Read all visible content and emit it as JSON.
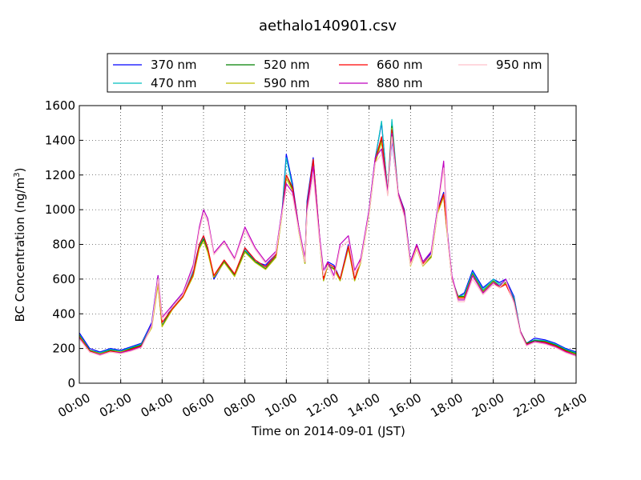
{
  "chart_data": {
    "type": "line",
    "title": "aethalo140901.csv",
    "xlabel": "Time on 2014-09-01 (JST)",
    "ylabel": "BC Concentration (ng/m",
    "ylabel_sup": "3",
    "ylabel_end": ")",
    "xlim": [
      0,
      24
    ],
    "ylim": [
      0,
      1600
    ],
    "grid": true,
    "legend_position": "top",
    "x_ticks": [
      0,
      2,
      4,
      6,
      8,
      10,
      12,
      14,
      16,
      18,
      20,
      22,
      24
    ],
    "x_tick_labels": [
      "00:00",
      "02:00",
      "04:00",
      "06:00",
      "08:00",
      "10:00",
      "12:00",
      "14:00",
      "16:00",
      "18:00",
      "20:00",
      "22:00",
      "24:00"
    ],
    "y_ticks": [
      0,
      200,
      400,
      600,
      800,
      1000,
      1200,
      1400,
      1600
    ],
    "y_tick_labels": [
      "0",
      "200",
      "400",
      "600",
      "800",
      "1000",
      "1200",
      "1400",
      "1600"
    ],
    "x_hours": [
      0,
      0.5,
      1,
      1.5,
      2,
      2.5,
      3,
      3.5,
      3.8,
      4,
      4.5,
      5,
      5.5,
      5.8,
      6,
      6.2,
      6.5,
      7,
      7.5,
      8,
      8.5,
      9,
      9.5,
      9.8,
      10,
      10.3,
      10.6,
      10.9,
      11,
      11.3,
      11.6,
      11.8,
      12,
      12.3,
      12.6,
      13,
      13.3,
      13.6,
      14,
      14.3,
      14.6,
      14.9,
      15.1,
      15.4,
      15.7,
      16,
      16.3,
      16.6,
      17,
      17.3,
      17.6,
      17.8,
      18,
      18.3,
      18.6,
      19,
      19.5,
      20,
      20.3,
      20.6,
      21,
      21.3,
      21.6,
      22,
      22.5,
      23,
      23.5,
      24
    ],
    "series": [
      {
        "name": "370 nm",
        "color": "#0000ff",
        "values": [
          290,
          200,
          180,
          200,
          190,
          210,
          230,
          350,
          620,
          330,
          450,
          520,
          650,
          800,
          850,
          780,
          600,
          700,
          620,
          780,
          700,
          680,
          750,
          1000,
          1320,
          1150,
          900,
          700,
          1050,
          1300,
          850,
          600,
          700,
          680,
          600,
          800,
          600,
          700,
          1000,
          1300,
          1500,
          1100,
          1400,
          1100,
          1000,
          700,
          800,
          700,
          750,
          1000,
          1100,
          850,
          600,
          500,
          520,
          650,
          550,
          600,
          580,
          600,
          500,
          300,
          230,
          260,
          250,
          230,
          200,
          180
        ]
      },
      {
        "name": "470 nm",
        "color": "#00bfbf",
        "values": [
          280,
          190,
          175,
          195,
          185,
          205,
          225,
          340,
          600,
          330,
          440,
          510,
          640,
          790,
          840,
          770,
          610,
          700,
          620,
          770,
          700,
          670,
          740,
          990,
          1300,
          1130,
          890,
          700,
          1030,
          1290,
          840,
          600,
          690,
          670,
          600,
          790,
          600,
          700,
          990,
          1290,
          1510,
          1100,
          1520,
          1100,
          990,
          690,
          790,
          690,
          740,
          990,
          1090,
          840,
          600,
          500,
          510,
          640,
          540,
          600,
          570,
          590,
          490,
          300,
          230,
          250,
          245,
          225,
          195,
          175
        ]
      },
      {
        "name": "520 nm",
        "color": "#008000",
        "values": [
          275,
          190,
          170,
          190,
          180,
          200,
          220,
          330,
          580,
          330,
          430,
          500,
          620,
          780,
          830,
          760,
          610,
          700,
          620,
          760,
          700,
          660,
          730,
          980,
          1200,
          1120,
          880,
          690,
          1000,
          1280,
          830,
          590,
          680,
          660,
          590,
          780,
          590,
          700,
          980,
          1280,
          1400,
          1090,
          1480,
          1090,
          980,
          680,
          780,
          680,
          730,
          980,
          1080,
          830,
          600,
          500,
          500,
          630,
          530,
          590,
          560,
          580,
          480,
          300,
          230,
          245,
          240,
          220,
          190,
          170
        ]
      },
      {
        "name": "590 nm",
        "color": "#bfbf00",
        "values": [
          270,
          185,
          170,
          185,
          180,
          195,
          215,
          320,
          570,
          325,
          425,
          495,
          615,
          775,
          820,
          755,
          610,
          695,
          615,
          755,
          695,
          655,
          725,
          975,
          1180,
          1110,
          875,
          690,
          990,
          1270,
          825,
          590,
          675,
          655,
          590,
          775,
          590,
          695,
          975,
          1270,
          1390,
          1085,
          1470,
          1085,
          975,
          675,
          775,
          675,
          725,
          975,
          1075,
          825,
          600,
          495,
          495,
          625,
          525,
          585,
          555,
          575,
          475,
          300,
          225,
          240,
          235,
          215,
          185,
          165
        ]
      },
      {
        "name": "660 nm",
        "color": "#ff0000",
        "values": [
          265,
          185,
          165,
          185,
          175,
          195,
          215,
          330,
          600,
          350,
          430,
          500,
          630,
          800,
          850,
          780,
          620,
          710,
          630,
          780,
          710,
          670,
          740,
          990,
          1200,
          1130,
          900,
          700,
          1020,
          1290,
          850,
          600,
          690,
          670,
          600,
          790,
          600,
          710,
          990,
          1290,
          1420,
          1100,
          1460,
          1100,
          990,
          690,
          790,
          690,
          740,
          990,
          1090,
          840,
          600,
          490,
          490,
          620,
          520,
          580,
          550,
          570,
          470,
          300,
          225,
          240,
          235,
          215,
          185,
          160
        ]
      },
      {
        "name": "880 nm",
        "color": "#bf00bf",
        "values": [
          260,
          180,
          165,
          180,
          175,
          190,
          210,
          340,
          620,
          380,
          450,
          520,
          680,
          900,
          1000,
          950,
          750,
          820,
          720,
          900,
          780,
          700,
          760,
          1000,
          1150,
          1100,
          900,
          720,
          1000,
          1250,
          850,
          650,
          700,
          620,
          800,
          850,
          650,
          720,
          1000,
          1300,
          1350,
          1100,
          1440,
          1100,
          980,
          700,
          800,
          700,
          760,
          1000,
          1280,
          840,
          620,
          480,
          480,
          620,
          520,
          580,
          560,
          600,
          470,
          300,
          220,
          240,
          230,
          210,
          180,
          160
        ]
      },
      {
        "name": "950 nm",
        "color": "#ffc0cb",
        "values": [
          255,
          180,
          160,
          180,
          170,
          185,
          205,
          330,
          600,
          370,
          440,
          510,
          660,
          880,
          980,
          930,
          740,
          810,
          710,
          880,
          770,
          690,
          750,
          980,
          1120,
          1080,
          880,
          700,
          980,
          1200,
          820,
          620,
          680,
          600,
          780,
          820,
          630,
          700,
          980,
          1270,
          1320,
          1080,
          1420,
          1080,
          960,
          680,
          780,
          680,
          740,
          980,
          1240,
          820,
          600,
          470,
          470,
          600,
          510,
          570,
          550,
          590,
          460,
          290,
          215,
          235,
          225,
          205,
          175,
          155
        ]
      }
    ]
  }
}
